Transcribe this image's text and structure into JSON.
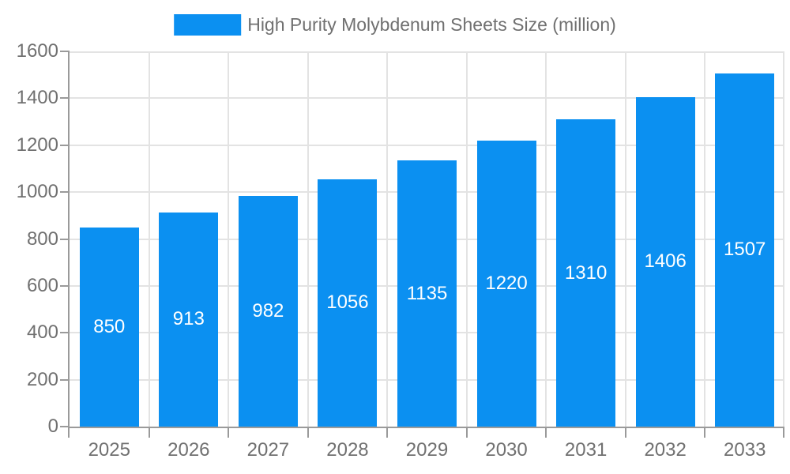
{
  "chart_data": {
    "type": "bar",
    "title": "",
    "legend": "High Purity Molybdenum Sheets Size (million)",
    "legend_position": "top",
    "categories": [
      "2025",
      "2026",
      "2027",
      "2028",
      "2029",
      "2030",
      "2031",
      "2032",
      "2033"
    ],
    "values": [
      850,
      913,
      982,
      1056,
      1135,
      1220,
      1310,
      1406,
      1507
    ],
    "xlabel": "",
    "ylabel": "",
    "ylim": [
      0,
      1600
    ],
    "yticks": [
      0,
      200,
      400,
      600,
      800,
      1000,
      1200,
      1400,
      1600
    ],
    "grid": true,
    "bar_color": "#0b90f1",
    "value_label_color": "#ffffff",
    "axis_color": "#9a9a9a",
    "grid_color": "#e3e3e3",
    "text_color": "#707070",
    "background": "#ffffff"
  }
}
